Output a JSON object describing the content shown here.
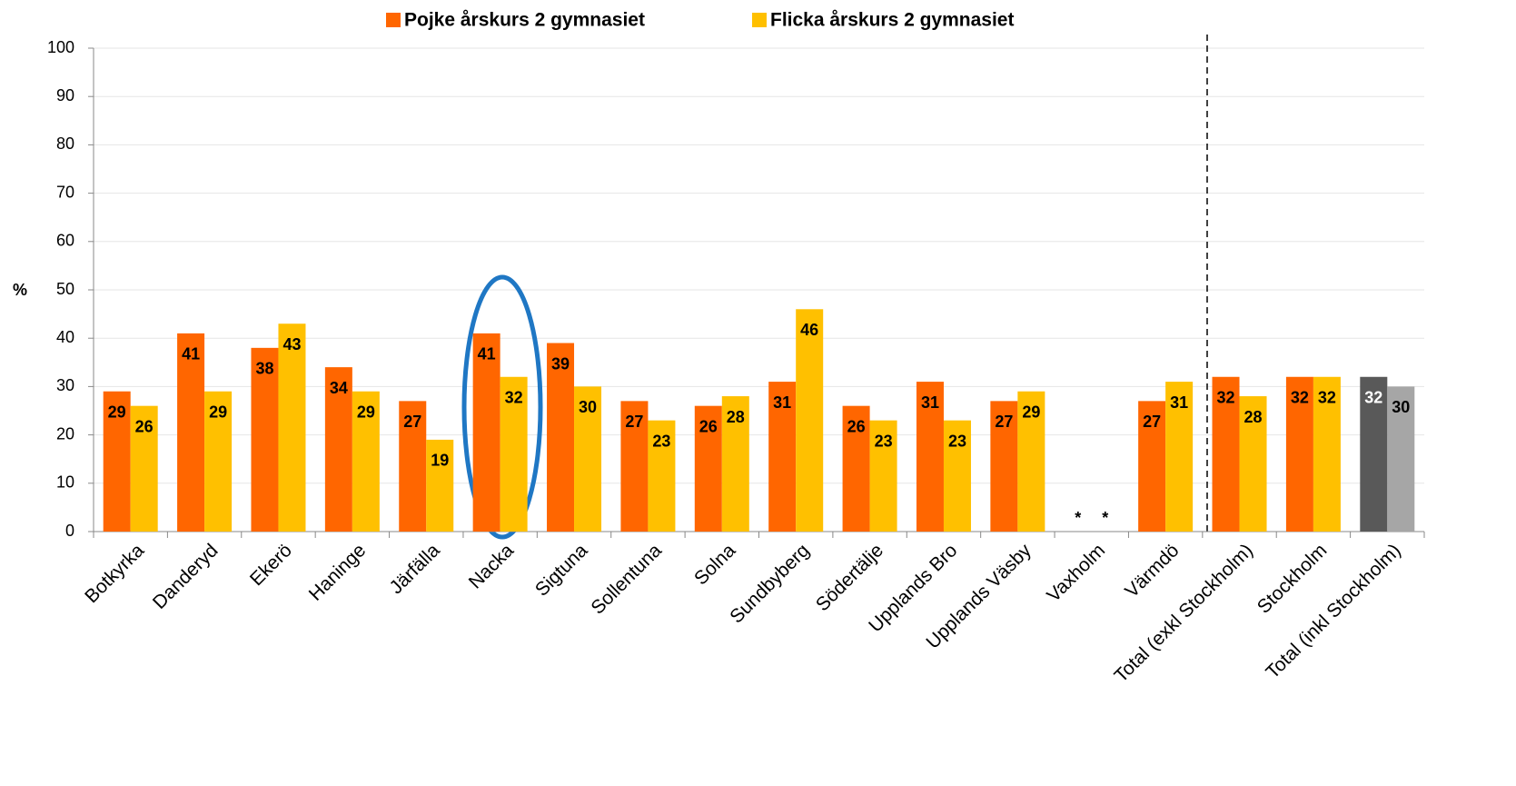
{
  "chart_data": {
    "type": "bar",
    "y_label": "%",
    "categories": [
      "Botkyrka",
      "Danderyd",
      "Ekerö",
      "Haninge",
      "Järfälla",
      "Nacka",
      "Sigtuna",
      "Sollentuna",
      "Solna",
      "Sundbyberg",
      "Södertälje",
      "Upplands Bro",
      "Upplands Väsby",
      "Vaxholm",
      "Värmdö",
      "Total (exkl Stockholm)",
      "Stockholm",
      "Total (inkl Stockholm)"
    ],
    "series": [
      {
        "name": "Pojke årskurs 2 gymnasiet",
        "color": "#ff6600",
        "colors": [
          "#ff6600",
          "#ff6600",
          "#ff6600",
          "#ff6600",
          "#ff6600",
          "#ff6600",
          "#ff6600",
          "#ff6600",
          "#ff6600",
          "#ff6600",
          "#ff6600",
          "#ff6600",
          "#ff6600",
          "#ff6600",
          "#ff6600",
          "#ff6600",
          "#ff6600",
          "#595959"
        ],
        "values": [
          29,
          41,
          38,
          34,
          27,
          41,
          39,
          27,
          26,
          31,
          26,
          31,
          27,
          null,
          27,
          32,
          32,
          32
        ],
        "value_labels": [
          "29",
          "41",
          "38",
          "34",
          "27",
          "41",
          "39",
          "27",
          "26",
          "31",
          "26",
          "31",
          "27",
          "*",
          "27",
          "32",
          "32",
          "32"
        ]
      },
      {
        "name": "Flicka årskurs 2 gymnasiet",
        "color": "#ffc000",
        "colors": [
          "#ffc000",
          "#ffc000",
          "#ffc000",
          "#ffc000",
          "#ffc000",
          "#ffc000",
          "#ffc000",
          "#ffc000",
          "#ffc000",
          "#ffc000",
          "#ffc000",
          "#ffc000",
          "#ffc000",
          "#ffc000",
          "#ffc000",
          "#ffc000",
          "#ffc000",
          "#a6a6a6"
        ],
        "values": [
          26,
          29,
          43,
          29,
          19,
          32,
          30,
          23,
          28,
          46,
          23,
          23,
          29,
          null,
          31,
          28,
          32,
          30
        ],
        "value_labels": [
          "26",
          "29",
          "43",
          "29",
          "19",
          "32",
          "30",
          "23",
          "28",
          "46",
          "23",
          "23",
          "29",
          "*",
          "31",
          "28",
          "32",
          "30"
        ]
      }
    ],
    "ylim": [
      0,
      100
    ],
    "yticks": [
      0,
      10,
      20,
      30,
      40,
      50,
      60,
      70,
      80,
      90,
      100
    ],
    "grid": true,
    "legend": "top"
  }
}
